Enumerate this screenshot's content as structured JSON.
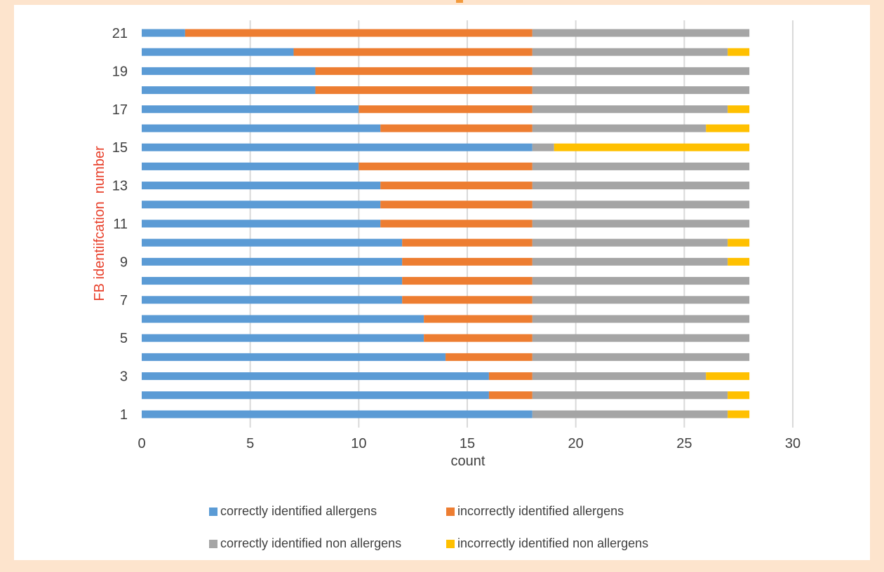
{
  "chart_data": {
    "type": "bar",
    "orientation": "horizontal",
    "stacked": true,
    "title": "",
    "xlabel": "count",
    "ylabel": "FB identiifcation  number",
    "xlim": [
      0,
      30
    ],
    "xticks": [
      0,
      5,
      10,
      15,
      20,
      25,
      30
    ],
    "categories": [
      "1",
      "2",
      "3",
      "4",
      "5",
      "6",
      "7",
      "8",
      "9",
      "10",
      "11",
      "12",
      "13",
      "14",
      "15",
      "16",
      "17",
      "18",
      "19",
      "20",
      "21"
    ],
    "ytick_labels_shown": [
      "1",
      "3",
      "5",
      "7",
      "9",
      "11",
      "13",
      "15",
      "17",
      "19",
      "21"
    ],
    "grid": "vertical",
    "legend_position": "bottom",
    "series": [
      {
        "name": "correctly identified allergens",
        "color": "#5b9bd5",
        "values": [
          18,
          16,
          16,
          14,
          13,
          13,
          12,
          12,
          12,
          12,
          11,
          11,
          11,
          10,
          18,
          11,
          10,
          8,
          8,
          7,
          2
        ]
      },
      {
        "name": "incorrectly identified allergens",
        "color": "#ed7d31",
        "values": [
          0,
          2,
          2,
          4,
          5,
          5,
          6,
          6,
          6,
          6,
          7,
          7,
          7,
          8,
          0,
          7,
          8,
          10,
          10,
          11,
          16
        ]
      },
      {
        "name": "correctly identified non allergens",
        "color": "#a5a5a5",
        "values": [
          9,
          9,
          8,
          10,
          10,
          10,
          10,
          10,
          9,
          9,
          10,
          10,
          10,
          10,
          1,
          8,
          9,
          10,
          10,
          9,
          10
        ]
      },
      {
        "name": "incorrectly identified non allergens",
        "color": "#ffc000",
        "values": [
          1,
          1,
          2,
          0,
          0,
          0,
          0,
          0,
          1,
          1,
          0,
          0,
          0,
          0,
          9,
          2,
          1,
          0,
          0,
          1,
          0
        ]
      }
    ]
  },
  "colors": {
    "page_background": "#fde4cd",
    "frame_background": "#ffffff",
    "ylabel_color": "#e8412c",
    "tick_color": "#404040",
    "grid_color": "#d9d9d9",
    "accent": "#f39a3c"
  }
}
